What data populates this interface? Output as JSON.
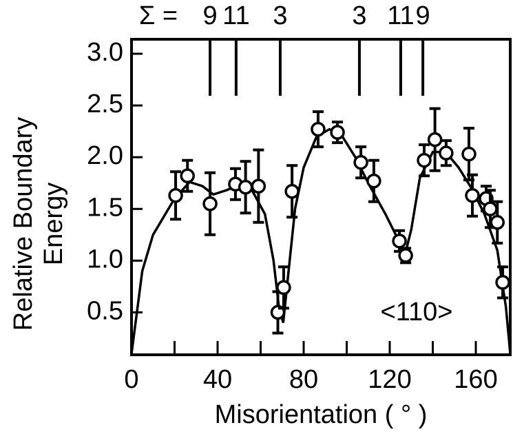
{
  "chart_data": {
    "type": "scatter",
    "xlabel": "Misorientation ( ° )",
    "ylabel": [
      "Relative Boundary",
      "Energy"
    ],
    "annotation": "<110>",
    "color": "#000000",
    "xlim": [
      0,
      176
    ],
    "ylim": [
      0.09,
      3.14
    ],
    "xticks": [
      0,
      40,
      80,
      120,
      160
    ],
    "xminorticks": [
      20,
      60,
      100,
      140
    ],
    "yticks": [
      {
        "value": 0.5,
        "label": "0.5"
      },
      {
        "value": 1.0,
        "label": "1.0"
      },
      {
        "value": 1.5,
        "label": "1.5"
      },
      {
        "value": 2.0,
        "label": "2.0"
      },
      {
        "value": 2.5,
        "label": "2.5"
      },
      {
        "value": 3.0,
        "label": "3.0"
      }
    ],
    "sigma": {
      "label": "Σ =",
      "x": [
        36.5,
        48.6,
        69.1,
        105.9,
        125.1,
        135.4
      ],
      "labels": [
        "9",
        "11",
        "3",
        "3",
        "11",
        "9"
      ]
    },
    "points": {
      "x": [
        20.5,
        26,
        36.5,
        48.3,
        53,
        59,
        68,
        70.7,
        74.6,
        86.7,
        95.7,
        106.6,
        112.6,
        124.5,
        127.4,
        136,
        141,
        146.2,
        156.8,
        158.4,
        164.8,
        166.7,
        170,
        172.5
      ],
      "values": [
        1.63,
        1.82,
        1.55,
        1.74,
        1.71,
        1.72,
        0.5,
        0.74,
        1.67,
        2.27,
        2.24,
        1.95,
        1.77,
        1.19,
        1.05,
        1.97,
        2.17,
        2.04,
        2.03,
        1.63,
        1.6,
        1.5,
        1.37,
        0.79
      ],
      "errors": [
        0.23,
        0.15,
        0.3,
        0.15,
        0.25,
        0.35,
        0.2,
        0.2,
        0.25,
        0.17,
        0.1,
        0.15,
        0.2,
        0.1,
        0.07,
        0.15,
        0.3,
        0.12,
        0.25,
        0.2,
        0.12,
        0.18,
        0.2,
        0.15
      ]
    },
    "fit": {
      "x": [
        0,
        5,
        10,
        20,
        27,
        33,
        38,
        44,
        50,
        56,
        62,
        66,
        68.5,
        70.5,
        73,
        76,
        80,
        86,
        92,
        98,
        104,
        110,
        118,
        124,
        127,
        130,
        134,
        140,
        146,
        152,
        158,
        164,
        170,
        174,
        176
      ],
      "values": [
        0.1,
        0.9,
        1.25,
        1.6,
        1.76,
        1.72,
        1.64,
        1.68,
        1.73,
        1.68,
        1.45,
        1.0,
        0.55,
        0.4,
        0.9,
        1.5,
        1.9,
        2.2,
        2.27,
        2.2,
        2.0,
        1.75,
        1.45,
        1.2,
        1.05,
        1.3,
        1.8,
        2.05,
        2.05,
        1.9,
        1.7,
        1.45,
        1.1,
        0.55,
        0.1
      ]
    }
  }
}
